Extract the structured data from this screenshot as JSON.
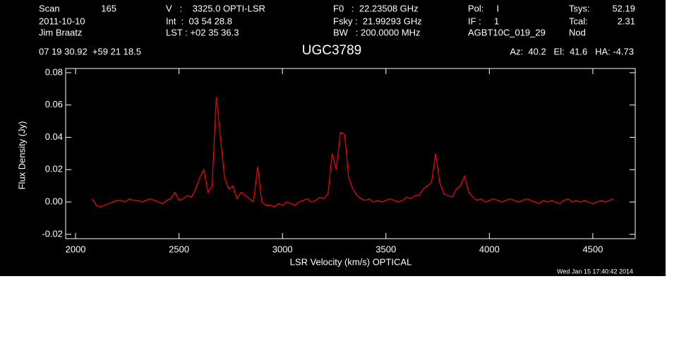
{
  "chart_data": {
    "type": "line",
    "title": "UGC3789",
    "header": [
      "Scan",
      "165",
      "2011-10-10",
      "Jim Braatz",
      "V   :    3325.0 OPTI-LSR",
      "Int  :  03 54 28.8",
      "LST : +02 35 36.3",
      "F0   :  22.23508 GHz",
      "Fsky :  21.99293 GHz",
      "BW   : 200.0000 MHz",
      "Pol:     I",
      "IF :     1",
      "AGBT10C_019_29",
      "Tsys:",
      "52.19",
      "Tcal:",
      "2.31",
      "Nod",
      "07 19 30.92  +59 21 18.5",
      "Az:  40.2   El:  41.6   HA: -4.73"
    ],
    "footer": "Wed Jan 15 17:40:42 2014",
    "xlabel": "LSR Velocity (km/s) OPTICAL",
    "ylabel": "Flux Density (Jy)",
    "color": "#ff0000",
    "xlim": [
      1952,
      4705
    ],
    "ylim": [
      -0.0227,
      0.0826
    ],
    "xticks": [
      2000,
      2500,
      3000,
      3500,
      4000,
      4500
    ],
    "yticks": [
      {
        "value": -0.02,
        "label": "-0.02"
      },
      {
        "value": 0,
        "label": "0.00"
      },
      {
        "value": 0.02,
        "label": "0.02"
      },
      {
        "value": 0.04,
        "label": "0.04"
      },
      {
        "value": 0.06,
        "label": "0.06"
      },
      {
        "value": 0.08,
        "label": "0.08"
      }
    ],
    "x": [
      2080,
      2100,
      2120,
      2140,
      2160,
      2180,
      2200,
      2220,
      2240,
      2260,
      2280,
      2300,
      2320,
      2340,
      2360,
      2380,
      2400,
      2420,
      2440,
      2460,
      2480,
      2500,
      2520,
      2540,
      2560,
      2580,
      2600,
      2620,
      2640,
      2660,
      2680,
      2700,
      2720,
      2740,
      2760,
      2780,
      2800,
      2820,
      2840,
      2860,
      2880,
      2900,
      2920,
      2940,
      2960,
      2980,
      3000,
      3020,
      3040,
      3060,
      3080,
      3100,
      3120,
      3140,
      3160,
      3180,
      3200,
      3220,
      3240,
      3260,
      3280,
      3300,
      3320,
      3340,
      3360,
      3380,
      3400,
      3420,
      3440,
      3460,
      3480,
      3500,
      3520,
      3540,
      3560,
      3580,
      3600,
      3620,
      3640,
      3660,
      3680,
      3700,
      3720,
      3740,
      3760,
      3780,
      3800,
      3820,
      3840,
      3860,
      3880,
      3900,
      3920,
      3940,
      3960,
      3980,
      4000,
      4020,
      4040,
      4060,
      4080,
      4100,
      4120,
      4140,
      4160,
      4180,
      4200,
      4220,
      4240,
      4260,
      4280,
      4300,
      4320,
      4340,
      4360,
      4380,
      4400,
      4420,
      4440,
      4460,
      4480,
      4500,
      4520,
      4540,
      4560,
      4580,
      4600
    ],
    "values": [
      0.002,
      -0.002,
      -0.003,
      -0.002,
      -0.001,
      0.0,
      0.001,
      0.001,
      0.0,
      0.002,
      0.001,
      0.001,
      0.0,
      0.001,
      0.002,
      0.001,
      0.0,
      -0.001,
      0.001,
      0.002,
      0.006,
      0.001,
      0.002,
      0.004,
      0.003,
      0.008,
      0.015,
      0.02,
      0.006,
      0.01,
      0.065,
      0.04,
      0.015,
      0.008,
      0.01,
      0.002,
      0.006,
      0.004,
      0.002,
      0.0,
      0.022,
      0.0,
      -0.002,
      -0.002,
      -0.003,
      -0.001,
      -0.002,
      0.0,
      -0.001,
      -0.002,
      0.0,
      0.001,
      0.002,
      0.0,
      0.001,
      0.003,
      0.002,
      0.005,
      0.03,
      0.02,
      0.043,
      0.042,
      0.015,
      0.008,
      0.004,
      0.002,
      0.001,
      0.002,
      0.0,
      0.001,
      0.0,
      0.001,
      0.002,
      0.001,
      0.0,
      0.001,
      0.003,
      0.002,
      0.004,
      0.004,
      0.008,
      0.01,
      0.012,
      0.03,
      0.012,
      0.005,
      0.004,
      0.003,
      0.008,
      0.01,
      0.016,
      0.006,
      0.003,
      0.001,
      0.002,
      0.0,
      0.001,
      0.002,
      0.001,
      0.0,
      0.001,
      0.002,
      0.001,
      0.0,
      0.001,
      0.002,
      0.001,
      0.0,
      -0.001,
      0.001,
      0.0,
      0.001,
      0.0,
      -0.001,
      0.001,
      0.002,
      0.0,
      0.001,
      0.0,
      0.001,
      0.0,
      -0.001,
      0.0,
      0.001,
      0.0,
      0.001,
      0.002
    ]
  }
}
